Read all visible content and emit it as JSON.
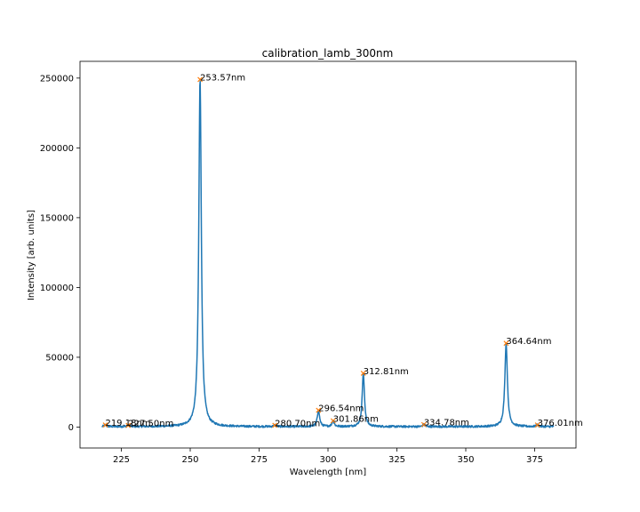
{
  "chart_data": {
    "type": "line",
    "title": "calibration_lamb_300nm",
    "xlabel": "Wavelength [nm]",
    "ylabel": "Intensity [arb. units]",
    "xlim": [
      210,
      390
    ],
    "ylim": [
      -15000,
      262000
    ],
    "xticks": [
      225,
      250,
      275,
      300,
      325,
      350,
      375
    ],
    "yticks": [
      0,
      50000,
      100000,
      150000,
      200000,
      250000
    ],
    "xrange": [
      218,
      382
    ],
    "baseline": 300,
    "noise_amplitude": 700,
    "grid": false,
    "legend": "none",
    "colors": {
      "line": "#1f77b4",
      "peak_marker": "#ff7f0e"
    },
    "peaks": [
      {
        "x": 219.18,
        "y": 1500,
        "label": "219.18nm",
        "width": 0.4
      },
      {
        "x": 227.5,
        "y": 1200,
        "label": "227.50nm",
        "width": 0.4
      },
      {
        "x": 253.57,
        "y": 249000,
        "label": "253.57nm",
        "width": 0.55
      },
      {
        "x": 280.7,
        "y": 1300,
        "label": "280.70nm",
        "width": 0.4
      },
      {
        "x": 296.54,
        "y": 12000,
        "label": "296.54nm",
        "width": 0.5
      },
      {
        "x": 301.86,
        "y": 4500,
        "label": "301.86nm",
        "width": 0.45
      },
      {
        "x": 312.81,
        "y": 38500,
        "label": "312.81nm",
        "width": 0.5
      },
      {
        "x": 334.78,
        "y": 1800,
        "label": "334.78nm",
        "width": 0.4
      },
      {
        "x": 364.64,
        "y": 60000,
        "label": "364.64nm",
        "width": 0.55
      },
      {
        "x": 376.01,
        "y": 1500,
        "label": "376.01nm",
        "width": 0.4
      }
    ]
  }
}
